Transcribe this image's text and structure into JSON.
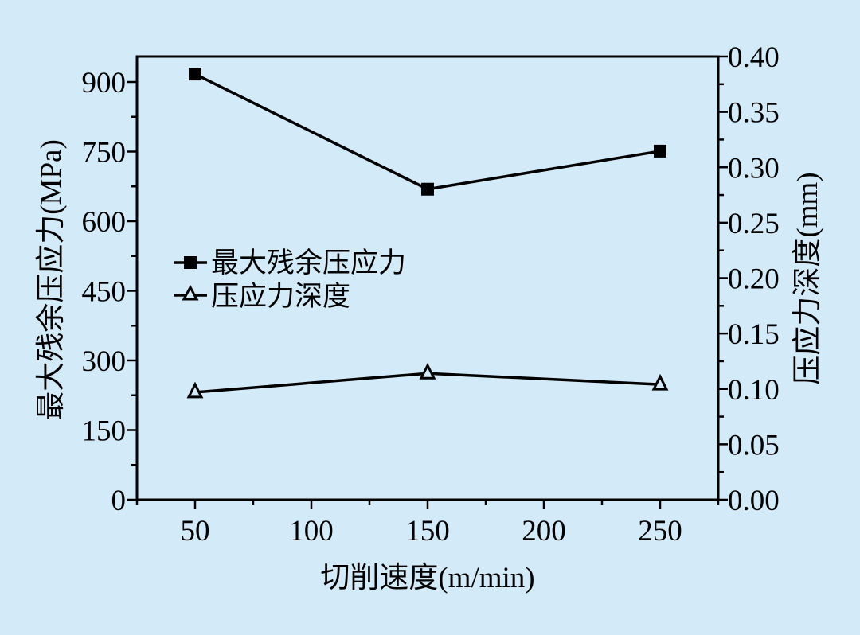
{
  "colors": {
    "background": "#d3eaf9",
    "ink": "#000000"
  },
  "chart_data": {
    "type": "line",
    "title": "",
    "xlabel": "切削速度(m/min)",
    "ylabel": "最大残余压应力(MPa)",
    "y2label": "压应力深度(mm)",
    "x": [
      50,
      150,
      250
    ],
    "xlim": [
      25,
      275
    ],
    "ylim": [
      0,
      955
    ],
    "y2lim": [
      0,
      0.4
    ],
    "xticks": [
      50,
      100,
      150,
      200,
      250
    ],
    "xtick_labels": [
      "50",
      "100",
      "150",
      "200",
      "250"
    ],
    "yticks": [
      0,
      150,
      300,
      450,
      600,
      750,
      900
    ],
    "ytick_labels": [
      "0",
      "150",
      "300",
      "450",
      "600",
      "750",
      "900"
    ],
    "y2ticks": [
      0,
      0.05,
      0.1,
      0.15,
      0.2,
      0.25,
      0.3,
      0.35,
      0.4
    ],
    "y2tick_labels": [
      "0.00",
      "0.05",
      "0.10",
      "0.15",
      "0.20",
      "0.25",
      "0.30",
      "0.35",
      "0.40"
    ],
    "grid": false,
    "legend_position": "center-left",
    "series": [
      {
        "name": "最大残余压应力",
        "axis": "left",
        "marker": "filled-square",
        "values": [
          917,
          669,
          751
        ]
      },
      {
        "name": "压应力深度",
        "axis": "right",
        "marker": "open-triangle",
        "values": [
          0.097,
          0.114,
          0.104
        ]
      }
    ]
  }
}
